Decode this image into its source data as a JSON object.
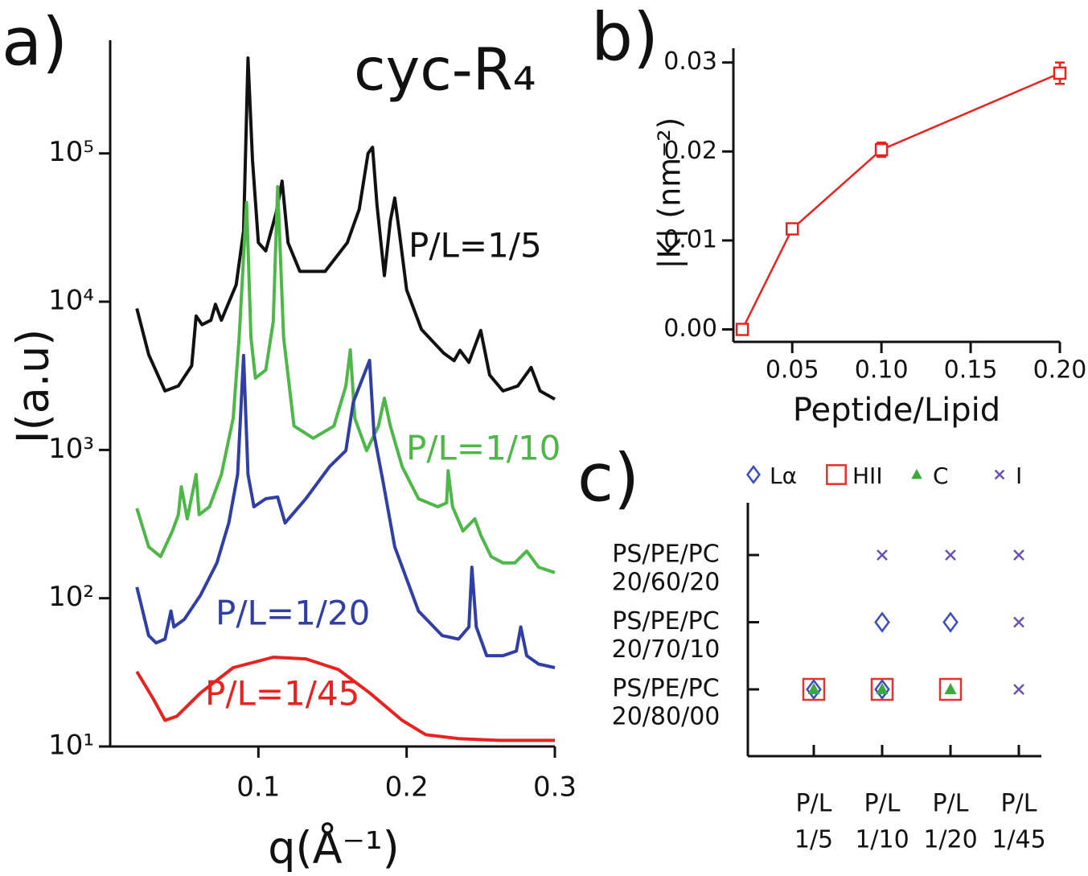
{
  "chart_data": [
    {
      "type": "line",
      "panel": "a)",
      "title": "cyc-R₄",
      "xlabel": "q(Å⁻¹)",
      "ylabel": "I(a.u)",
      "xlim": [
        0,
        0.3
      ],
      "ylim": [
        10,
        580000
      ],
      "log_y": true,
      "xticks": [
        0.1,
        0.2,
        0.3
      ],
      "yticks": [
        {
          "value": 10,
          "label": "10¹"
        },
        {
          "value": 100,
          "label": "10²"
        },
        {
          "value": 1000,
          "label": "10³"
        },
        {
          "value": 10000,
          "label": "10⁴"
        },
        {
          "value": 100000,
          "label": "10⁵"
        }
      ],
      "series": [
        {
          "name": "P/L=1/5",
          "color": "#111111",
          "x": [
            0.018,
            0.026,
            0.037,
            0.046,
            0.055,
            0.058,
            0.062,
            0.068,
            0.071,
            0.075,
            0.085,
            0.09,
            0.093,
            0.096,
            0.1,
            0.105,
            0.112,
            0.116,
            0.12,
            0.128,
            0.145,
            0.16,
            0.168,
            0.174,
            0.177,
            0.18,
            0.185,
            0.189,
            0.192,
            0.195,
            0.2,
            0.21,
            0.225,
            0.232,
            0.236,
            0.242,
            0.25,
            0.256,
            0.265,
            0.275,
            0.284,
            0.29,
            0.3
          ],
          "values": [
            9000,
            4400,
            2500,
            2700,
            3700,
            8000,
            7000,
            7500,
            9600,
            7500,
            13000,
            30000,
            440000,
            90000,
            25000,
            22000,
            40000,
            65000,
            25000,
            16000,
            16000,
            25000,
            42000,
            100000,
            110000,
            45000,
            15000,
            35000,
            50000,
            30000,
            12000,
            6500,
            4500,
            4000,
            4700,
            3900,
            6400,
            3200,
            2500,
            2700,
            3600,
            2500,
            2200
          ]
        },
        {
          "name": "P/L=1/10",
          "color": "#4db848",
          "x": [
            0.018,
            0.026,
            0.034,
            0.042,
            0.046,
            0.048,
            0.052,
            0.058,
            0.06,
            0.067,
            0.075,
            0.083,
            0.087,
            0.092,
            0.095,
            0.098,
            0.105,
            0.11,
            0.113,
            0.117,
            0.124,
            0.137,
            0.151,
            0.159,
            0.162,
            0.165,
            0.173,
            0.181,
            0.185,
            0.189,
            0.197,
            0.208,
            0.221,
            0.227,
            0.228,
            0.231,
            0.238,
            0.246,
            0.25,
            0.257,
            0.265,
            0.273,
            0.281,
            0.289,
            0.3
          ],
          "values": [
            404,
            222,
            191,
            284,
            366,
            565,
            343,
            683,
            366,
            414,
            683,
            1640,
            5710,
            46600,
            5710,
            3050,
            3460,
            7330,
            59700,
            5710,
            1450,
            1200,
            1450,
            2700,
            4730,
            1640,
            990,
            1450,
            2230,
            1450,
            772,
            469,
            414,
            440,
            724,
            414,
            284,
            343,
            267,
            191,
            173,
            173,
            208,
            162,
            149
          ]
        },
        {
          "name": "P/L=1/20",
          "color": "#2f3fa5",
          "x": [
            0.018,
            0.026,
            0.031,
            0.037,
            0.041,
            0.043,
            0.05,
            0.061,
            0.072,
            0.08,
            0.086,
            0.09,
            0.093,
            0.097,
            0.105,
            0.113,
            0.118,
            0.132,
            0.148,
            0.159,
            0.164,
            0.175,
            0.178,
            0.184,
            0.192,
            0.208,
            0.224,
            0.235,
            0.242,
            0.244,
            0.247,
            0.254,
            0.265,
            0.274,
            0.277,
            0.281,
            0.289,
            0.3
          ],
          "values": [
            119,
            56,
            50,
            53,
            82,
            64,
            72,
            105,
            173,
            322,
            683,
            4340,
            683,
            414,
            469,
            481,
            322,
            469,
            772,
            990,
            2100,
            4020,
            1280,
            617,
            222,
            82,
            56,
            53,
            64,
            162,
            64,
            41,
            41,
            44,
            64,
            41,
            36,
            34
          ]
        },
        {
          "name": "P/L=1/45",
          "color": "#e8231f",
          "x": [
            0.018,
            0.029,
            0.037,
            0.045,
            0.061,
            0.083,
            0.11,
            0.132,
            0.154,
            0.175,
            0.197,
            0.213,
            0.235,
            0.262,
            0.3
          ],
          "values": [
            32,
            21,
            15,
            16,
            23,
            34,
            40,
            39,
            33,
            23,
            15,
            12,
            11.3,
            11,
            11
          ]
        }
      ]
    },
    {
      "type": "errorbar",
      "panel": "b)",
      "xlabel": "Peptide/Lipid",
      "ylabel": "|K| (nm⁻²)",
      "xlim": [
        0.017,
        0.2
      ],
      "ylim": [
        -0.0014,
        0.0316
      ],
      "xticks": [
        0.05,
        {
          "value": 0.1,
          "label": "0.10"
        },
        0.15,
        {
          "value": 0.2,
          "label": "0.20"
        }
      ],
      "yticks": [
        {
          "value": 0,
          "label": "0.00"
        },
        0.01,
        0.02,
        0.03
      ],
      "color": "#e8231f",
      "x": [
        0.022,
        0.05,
        0.1,
        0.2
      ],
      "values": [
        0.0,
        0.0113,
        0.0202,
        0.0288
      ],
      "errors": [
        0.0005,
        0.0006,
        0.0008,
        0.0012
      ]
    },
    {
      "type": "phase",
      "panel": "c)",
      "rows": [
        [
          "PS/PE/PC",
          "20/60/20"
        ],
        [
          "PS/PE/PC",
          "20/70/10"
        ],
        [
          "PS/PE/PC",
          "20/80/00"
        ]
      ],
      "columns": [
        [
          "P/L",
          "1/5"
        ],
        [
          "P/L",
          "1/10"
        ],
        [
          "P/L",
          "1/20"
        ],
        [
          "P/L",
          "1/45"
        ]
      ],
      "series": [
        {
          "name": "Lα",
          "marker": "diamond",
          "color": "#3b4cc0",
          "cells": [
            [
              false,
              false,
              false,
              false
            ],
            [
              false,
              true,
              true,
              false
            ],
            [
              true,
              true,
              false,
              false
            ]
          ]
        },
        {
          "name": "HII",
          "marker": "square",
          "color": "#e8312a",
          "cells": [
            [
              false,
              false,
              false,
              false
            ],
            [
              false,
              false,
              false,
              false
            ],
            [
              true,
              true,
              true,
              false
            ]
          ]
        },
        {
          "name": "C",
          "marker": "triangle",
          "color": "#3aaa3a",
          "cells": [
            [
              false,
              false,
              false,
              false
            ],
            [
              false,
              false,
              false,
              false
            ],
            [
              true,
              true,
              true,
              false
            ]
          ]
        },
        {
          "name": "I",
          "marker": "cross",
          "color": "#6a52b0",
          "cells": [
            [
              false,
              true,
              true,
              true
            ],
            [
              false,
              false,
              false,
              true
            ],
            [
              false,
              false,
              false,
              true
            ]
          ]
        }
      ]
    }
  ]
}
